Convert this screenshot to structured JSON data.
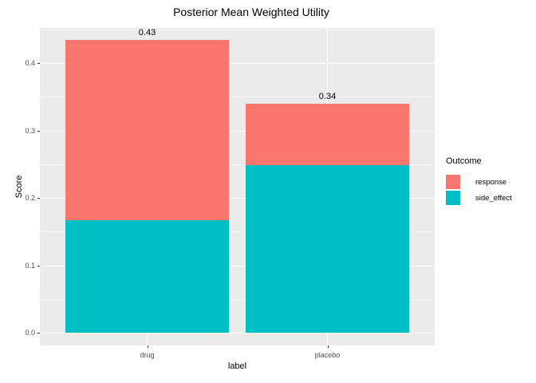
{
  "figure": {
    "title": "Posterior Mean Weighted Utility"
  },
  "chart_data": {
    "type": "bar",
    "stacked": true,
    "title": "Posterior Mean Weighted Utility",
    "xlabel": "label",
    "ylabel": "Score",
    "categories": [
      "drug",
      "placebo"
    ],
    "series": [
      {
        "name": "response",
        "color": "#F8766D",
        "values": [
          0.267,
          0.092
        ]
      },
      {
        "name": "side_effect",
        "color": "#00BFC4",
        "values": [
          0.167,
          0.248
        ]
      }
    ],
    "stack_order_bottom_to_top": [
      "side_effect",
      "response"
    ],
    "totals": [
      0.43,
      0.34
    ],
    "bar_labels": [
      "0.43",
      "0.34"
    ],
    "yticks": [
      {
        "value": 0.0,
        "label": "0.0"
      },
      {
        "value": 0.1,
        "label": "0.1"
      },
      {
        "value": 0.2,
        "label": "0.2"
      },
      {
        "value": 0.3,
        "label": "0.3"
      },
      {
        "value": 0.4,
        "label": "0.4"
      }
    ],
    "y_minor": [
      0.05,
      0.15,
      0.25,
      0.35,
      0.45
    ],
    "ylim": [
      -0.02,
      0.452
    ],
    "bar_width_fraction": 0.9,
    "grid": true,
    "legend": {
      "title": "Outcome",
      "position": "right"
    }
  },
  "colors": {
    "panel_bg": "#EBEBEB",
    "grid_major": "#FFFFFF",
    "grid_minor": "#F4F4F4",
    "tick_text": "#4D4D4D",
    "tick_mark": "#333333",
    "text": "#000000",
    "response": "#F8766D",
    "side_effect": "#00BFC4"
  }
}
